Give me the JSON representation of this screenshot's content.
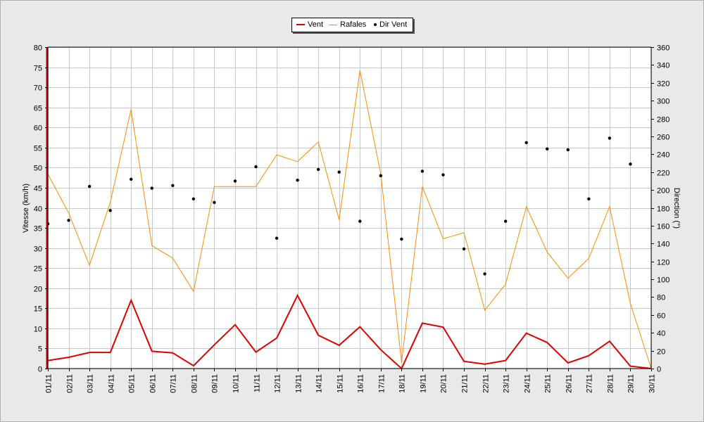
{
  "chart_data": {
    "type": "line",
    "title": "",
    "ylabel_left": "Vitesse (km/h)",
    "ylabel_right": "Direction (°)",
    "ylim_left": [
      0,
      80
    ],
    "ylim_right": [
      0,
      360
    ],
    "yticks_left": [
      "0",
      "5",
      "10",
      "15",
      "20",
      "25",
      "30",
      "35",
      "40",
      "45",
      "50",
      "55",
      "60",
      "65",
      "70",
      "75",
      "80"
    ],
    "yticks_right": [
      "0",
      "20",
      "40",
      "60",
      "80",
      "100",
      "120",
      "140",
      "160",
      "180",
      "200",
      "220",
      "240",
      "260",
      "280",
      "300",
      "320",
      "340",
      "360"
    ],
    "grid": true,
    "legend_position": "top-center",
    "categories": [
      "01/11",
      "02/11",
      "03/11",
      "04/11",
      "05/11",
      "06/11",
      "07/11",
      "08/11",
      "09/11",
      "10/11",
      "11/11",
      "12/11",
      "13/11",
      "14/11",
      "15/11",
      "16/11",
      "17/11",
      "18/11",
      "19/11",
      "20/11",
      "21/11",
      "22/11",
      "23/11",
      "24/11",
      "25/11",
      "26/11",
      "27/11",
      "28/11",
      "29/11",
      "30/11"
    ],
    "series": [
      {
        "name": "Vent",
        "type": "line",
        "axis": "left",
        "color": "#e00000",
        "values": [
          2,
          2.8,
          4,
          4,
          17,
          4.3,
          3.9,
          0.7,
          5.9,
          10.9,
          4.1,
          7.6,
          18.2,
          8.3,
          5.8,
          10.4,
          4.7,
          0,
          11.3,
          10.3,
          1.8,
          1.1,
          2,
          8.8,
          6.5,
          1.4,
          3.2,
          6.8,
          0.6,
          0
        ]
      },
      {
        "name": "Rafales",
        "type": "line",
        "axis": "left",
        "color": "#ff8c00",
        "values": [
          48.4,
          38.7,
          25.7,
          41.4,
          64.5,
          30.6,
          27.5,
          19.2,
          45.3,
          45.3,
          45.3,
          53.2,
          51.5,
          56.4,
          37,
          74.2,
          48.5,
          1.5,
          45.3,
          32.3,
          33.8,
          14.5,
          21,
          40.3,
          29,
          22.5,
          27.4,
          40.3,
          16.2,
          0
        ]
      },
      {
        "name": "Dir Vent",
        "type": "scatter",
        "axis": "right",
        "color": "#000000",
        "values": [
          162,
          166,
          204,
          177,
          212,
          202,
          205,
          190,
          186,
          210,
          226,
          146,
          211,
          223,
          220,
          165,
          216,
          145,
          221,
          217,
          134,
          106,
          165,
          253,
          246,
          245,
          190,
          258,
          229,
          null
        ]
      }
    ]
  }
}
